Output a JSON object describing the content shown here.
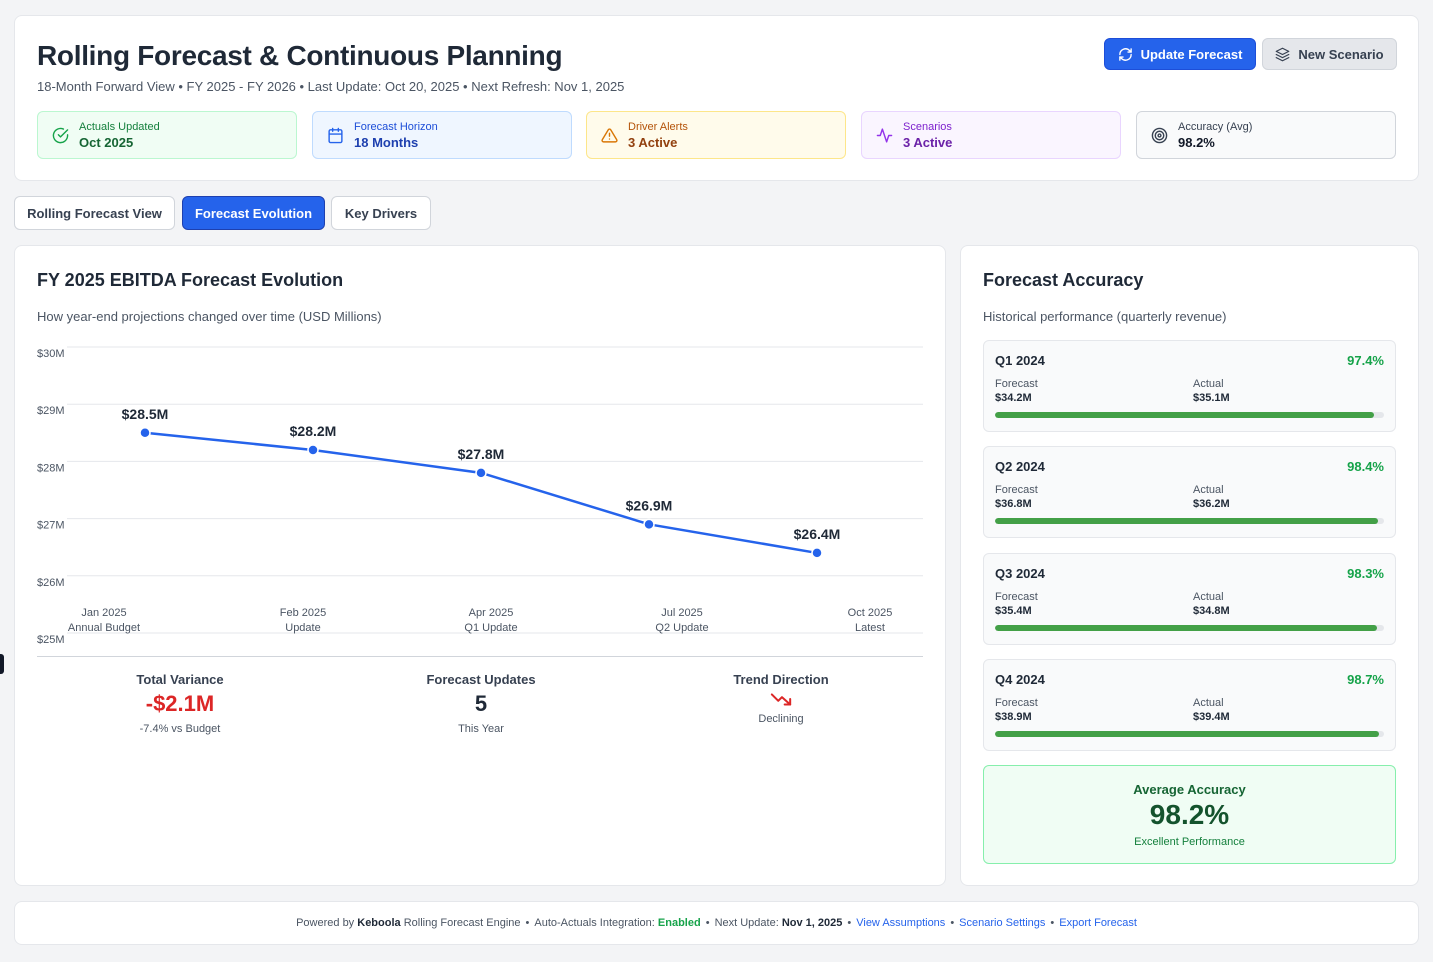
{
  "header": {
    "title": "Rolling Forecast & Continuous Planning",
    "subtitle": "18-Month Forward View • FY 2025 - FY 2026 • Last Update: Oct 20, 2025 • Next Refresh: Nov 1, 2025",
    "update_button": "Update Forecast",
    "scenario_button": "New Scenario"
  },
  "stats": [
    {
      "label": "Actuals Updated",
      "value": "Oct 2025",
      "icon": "check-circle-icon"
    },
    {
      "label": "Forecast Horizon",
      "value": "18 Months",
      "icon": "calendar-icon"
    },
    {
      "label": "Driver Alerts",
      "value": "3 Active",
      "icon": "warning-icon"
    },
    {
      "label": "Scenarios",
      "value": "3 Active",
      "icon": "activity-icon"
    },
    {
      "label": "Accuracy (Avg)",
      "value": "98.2%",
      "icon": "target-icon"
    }
  ],
  "tabs": [
    {
      "label": "Rolling Forecast View",
      "active": false
    },
    {
      "label": "Forecast Evolution",
      "active": true
    },
    {
      "label": "Key Drivers",
      "active": false
    }
  ],
  "evolution": {
    "title": "FY 2025 EBITDA Forecast Evolution",
    "subtitle": "How year-end projections changed over time (USD Millions)"
  },
  "chart_data": {
    "type": "line",
    "title": "FY 2025 EBITDA Forecast Evolution",
    "ylabel": "USD Millions",
    "ylim": [
      25,
      30
    ],
    "y_ticks": [
      "$30M",
      "$29M",
      "$28M",
      "$27M",
      "$26M",
      "$25M"
    ],
    "grid": true,
    "categories": [
      "Jan 2025",
      "Feb 2025",
      "Apr 2025",
      "Jul 2025",
      "Oct 2025"
    ],
    "sublabels": [
      "Annual Budget",
      "Update",
      "Q1 Update",
      "Q2 Update",
      "Latest"
    ],
    "series": [
      {
        "name": "FY 2025 EBITDA Forecast",
        "values": [
          28.5,
          28.2,
          27.8,
          26.9,
          26.4
        ],
        "labels": [
          "$28.5M",
          "$28.2M",
          "$27.8M",
          "$26.9M",
          "$26.4M"
        ],
        "color": "#2563eb"
      }
    ]
  },
  "summary": {
    "variance": {
      "label": "Total Variance",
      "value": "-$2.1M",
      "note": "-7.4% vs Budget"
    },
    "updates": {
      "label": "Forecast Updates",
      "value": "5",
      "note": "This Year"
    },
    "trend": {
      "label": "Trend Direction",
      "note": "Declining",
      "icon": "trending-down-icon"
    }
  },
  "accuracy": {
    "title": "Forecast Accuracy",
    "subtitle": "Historical performance (quarterly revenue)",
    "forecast_label": "Forecast",
    "actual_label": "Actual",
    "quarters": [
      {
        "name": "Q1 2024",
        "pct": "97.4%",
        "fill": 0.974,
        "forecast": "$34.2M",
        "actual": "$35.1M"
      },
      {
        "name": "Q2 2024",
        "pct": "98.4%",
        "fill": 0.984,
        "forecast": "$36.8M",
        "actual": "$36.2M"
      },
      {
        "name": "Q3 2024",
        "pct": "98.3%",
        "fill": 0.983,
        "forecast": "$35.4M",
        "actual": "$34.8M"
      },
      {
        "name": "Q4 2024",
        "pct": "98.7%",
        "fill": 0.987,
        "forecast": "$38.9M",
        "actual": "$39.4M"
      }
    ],
    "average_label": "Average Accuracy",
    "average_value": "98.2%",
    "average_note": "Excellent Performance"
  },
  "footer": {
    "powered_by": "Powered by",
    "brand": "Keboola",
    "engine": "Rolling Forecast Engine",
    "integration": "Auto-Actuals Integration:",
    "integration_status": "Enabled",
    "next_update": "Next Update:",
    "next_update_date": "Nov 1, 2025",
    "links": [
      "View Assumptions",
      "Scenario Settings",
      "Export Forecast"
    ]
  }
}
